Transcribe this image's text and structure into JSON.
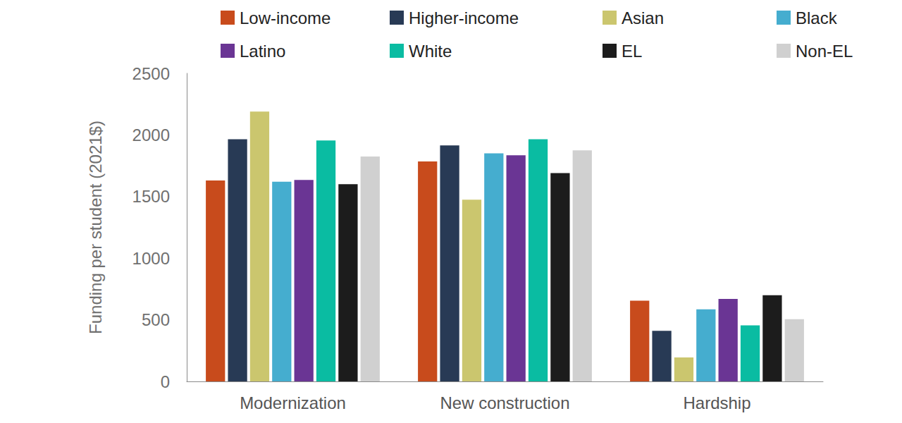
{
  "chart_data": {
    "type": "bar",
    "y_label": "Funding per student (2021$)",
    "categories": [
      "Modernization",
      "New construction",
      "Hardship"
    ],
    "series": [
      {
        "name": "Low-income",
        "color": "#c84b1c",
        "values": [
          1630,
          1785,
          655
        ]
      },
      {
        "name": "Higher-income",
        "color": "#283a55",
        "values": [
          1965,
          1915,
          410
        ]
      },
      {
        "name": "Asian",
        "color": "#cbc66e",
        "values": [
          2190,
          1475,
          195
        ]
      },
      {
        "name": "Black",
        "color": "#45adcf",
        "values": [
          1620,
          1850,
          585
        ]
      },
      {
        "name": "Latino",
        "color": "#6a3594",
        "values": [
          1635,
          1835,
          670
        ]
      },
      {
        "name": "White",
        "color": "#0abca2",
        "values": [
          1955,
          1965,
          455
        ]
      },
      {
        "name": "EL",
        "color": "#1c1c1c",
        "values": [
          1600,
          1690,
          700
        ]
      },
      {
        "name": "Non-EL",
        "color": "#d0d0d0",
        "values": [
          1825,
          1875,
          505
        ]
      }
    ],
    "ylim": [
      0,
      2500
    ],
    "yticks": [
      0,
      500,
      1000,
      1500,
      2000,
      2500
    ],
    "grid": false,
    "legend": "top"
  }
}
